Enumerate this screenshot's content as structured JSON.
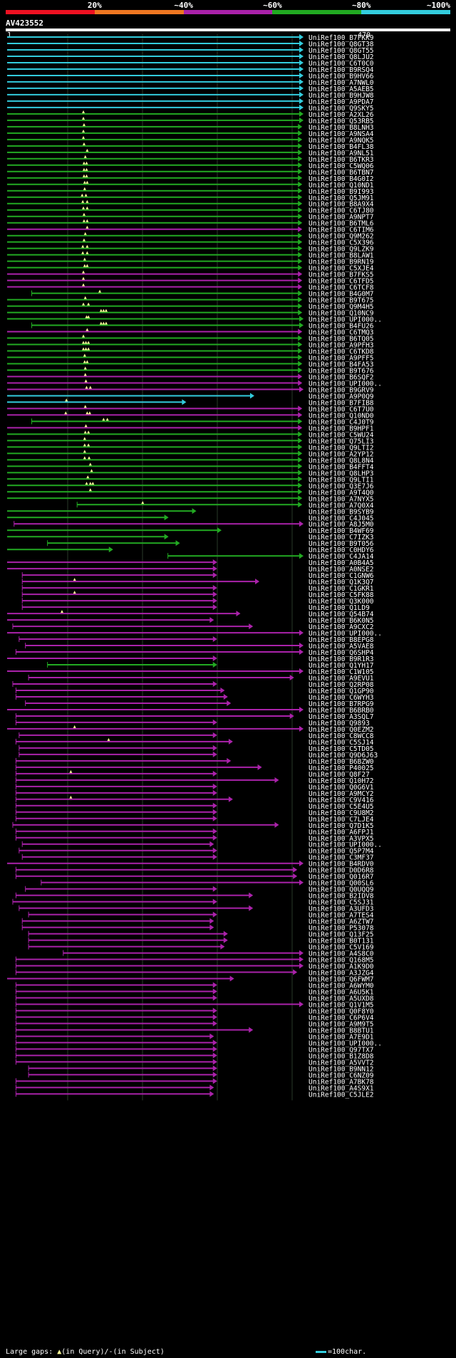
{
  "query": {
    "id": "AV423552",
    "start": "1",
    "end": "470"
  },
  "scale": {
    "labels": [
      "20%",
      "~40%",
      "~60%",
      "~80%",
      "~100%"
    ],
    "segments": [
      {
        "color": "#ee1122"
      },
      {
        "color": "#ee7722"
      },
      {
        "color": "#aa22aa"
      },
      {
        "color": "#22aa22"
      },
      {
        "color": "#33ccdd"
      }
    ]
  },
  "legend": {
    "prefix": "Large gaps: ",
    "query_gap": "(in Query)/",
    "subject_gap": "(in Subject)",
    "scale_label": "=100char."
  },
  "colors": {
    "c": "#33ccdd",
    "g": "#22aa22",
    "m": "#aa22aa",
    "marker": "#ffff99"
  },
  "chart_data": {
    "type": "alignment-overview",
    "query_length": 470,
    "hits": [
      [
        "UniRef100_B7FKK9",
        "c",
        1,
        470,
        []
      ],
      [
        "UniRef100_Q8GT38",
        "c",
        1,
        470,
        []
      ],
      [
        "UniRef100_Q8GT55",
        "c",
        1,
        470,
        []
      ],
      [
        "UniRef100_Q8LJU2",
        "c",
        1,
        470,
        []
      ],
      [
        "UniRef100_C6T0C0",
        "c",
        1,
        470,
        []
      ],
      [
        "UniRef100_B9RSQ4",
        "c",
        1,
        470,
        []
      ],
      [
        "UniRef100_B9HV66",
        "c",
        1,
        470,
        []
      ],
      [
        "UniRef100_A7NWL0",
        "c",
        1,
        470,
        []
      ],
      [
        "UniRef100_A5AEB5",
        "c",
        1,
        470,
        []
      ],
      [
        "UniRef100_B9HJW8",
        "c",
        1,
        470,
        []
      ],
      [
        "UniRef100_A9PDA7",
        "c",
        1,
        470,
        []
      ],
      [
        "UniRef100_Q9SKY5",
        "c",
        1,
        470,
        []
      ],
      [
        "UniRef100_A2XL26",
        "g",
        1,
        470,
        [
          122
        ]
      ],
      [
        "UniRef100_Q53RB5",
        "g",
        1,
        470,
        [
          122
        ]
      ],
      [
        "UniRef100_B8LNH3",
        "g",
        1,
        468,
        [
          123
        ]
      ],
      [
        "UniRef100_A9NSA4",
        "g",
        1,
        468,
        [
          122
        ]
      ],
      [
        "UniRef100_A9NQK5",
        "g",
        1,
        468,
        [
          122
        ]
      ],
      [
        "UniRef100_B4FL38",
        "g",
        1,
        468,
        [
          123
        ]
      ],
      [
        "UniRef100_A9NL51",
        "g",
        1,
        468,
        [
          128
        ]
      ],
      [
        "UniRef100_B6TKR3",
        "g",
        1,
        468,
        [
          125
        ]
      ],
      [
        "UniRef100_C5WQ06",
        "g",
        1,
        468,
        [
          123,
          127
        ]
      ],
      [
        "UniRef100_B6TBN7",
        "g",
        1,
        468,
        [
          123,
          127
        ]
      ],
      [
        "UniRef100_B4G0I2",
        "g",
        1,
        468,
        [
          123,
          127
        ]
      ],
      [
        "UniRef100_Q10ND1",
        "g",
        1,
        468,
        [
          124,
          128
        ]
      ],
      [
        "UniRef100_B9I993",
        "g",
        1,
        468,
        [
          124
        ]
      ],
      [
        "UniRef100_Q5JM91",
        "g",
        1,
        468,
        [
          120,
          126
        ]
      ],
      [
        "UniRef100_B8A9X4",
        "g",
        1,
        468,
        [
          121,
          128
        ]
      ],
      [
        "UniRef100_C6TJ80",
        "g",
        1,
        468,
        [
          122,
          128
        ]
      ],
      [
        "UniRef100_A9NPT7",
        "g",
        1,
        468,
        [
          123
        ]
      ],
      [
        "UniRef100_B6TML6",
        "g",
        1,
        468,
        [
          123,
          128
        ]
      ],
      [
        "UniRef100_C6TIM6",
        "m",
        1,
        468,
        [
          128
        ]
      ],
      [
        "UniRef100_Q9M262",
        "g",
        1,
        468,
        [
          125
        ]
      ],
      [
        "UniRef100_C5X396",
        "g",
        1,
        468,
        [
          123
        ]
      ],
      [
        "UniRef100_Q9LZK9",
        "g",
        1,
        468,
        [
          121,
          128
        ]
      ],
      [
        "UniRef100_B8LAW1",
        "g",
        1,
        468,
        [
          121,
          128
        ]
      ],
      [
        "UniRef100_B9RN19",
        "g",
        1,
        468,
        [
          124
        ]
      ],
      [
        "UniRef100_C5XJE4",
        "g",
        1,
        468,
        [
          124,
          128
        ]
      ],
      [
        "UniRef100_B7FKS5",
        "m",
        1,
        468,
        [
          122
        ]
      ],
      [
        "UniRef100_C6TFD5",
        "m",
        1,
        468,
        [
          122
        ]
      ],
      [
        "UniRef100_C6TCF8",
        "m",
        1,
        468,
        [
          122
        ]
      ],
      [
        "UniRef100_B4G0M7",
        "g",
        40,
        468,
        [
          148
        ]
      ],
      [
        "UniRef100_B9T675",
        "g",
        1,
        468,
        [
          125
        ]
      ],
      [
        "UniRef100_Q9M4H5",
        "g",
        1,
        468,
        [
          122,
          130
        ]
      ],
      [
        "UniRef100_Q10NC9",
        "g",
        1,
        468,
        [
          150,
          154,
          158
        ]
      ],
      [
        "UniRef100_UPI000..",
        "g",
        1,
        470,
        [
          127,
          130
        ]
      ],
      [
        "UniRef100_B4FU26",
        "g",
        40,
        470,
        [
          150,
          154,
          158
        ]
      ],
      [
        "UniRef100_C6TMQ3",
        "m",
        1,
        468,
        [
          128
        ]
      ],
      [
        "UniRef100_B6TQ05",
        "g",
        1,
        468,
        [
          122
        ]
      ],
      [
        "UniRef100_A9PFH3",
        "g",
        1,
        468,
        [
          122,
          126,
          130
        ]
      ],
      [
        "UniRef100_C6TKD8",
        "g",
        1,
        468,
        [
          122,
          126,
          130
        ]
      ],
      [
        "UniRef100_A9PFF5",
        "g",
        1,
        468,
        [
          124
        ]
      ],
      [
        "UniRef100_B4FA53",
        "g",
        1,
        468,
        [
          124,
          128
        ]
      ],
      [
        "UniRef100_B9T676",
        "g",
        1,
        468,
        [
          125
        ]
      ],
      [
        "UniRef100_B6SQF2",
        "m",
        1,
        468,
        [
          125
        ]
      ],
      [
        "UniRef100_UPI000..",
        "m",
        1,
        468,
        [
          126
        ]
      ],
      [
        "UniRef100_B9GRV9",
        "m",
        1,
        470,
        [
          127,
          133
        ]
      ],
      [
        "UniRef100_A9P0Q9",
        "c",
        1,
        392,
        []
      ],
      [
        "UniRef100_B7FIB8",
        "c",
        1,
        284,
        [
          95
        ]
      ],
      [
        "UniRef100_C6T7U0",
        "m",
        1,
        468,
        [
          125
        ]
      ],
      [
        "UniRef100_Q10ND0",
        "m",
        1,
        468,
        [
          94,
          128,
          132
        ]
      ],
      [
        "UniRef100_C4J0T9",
        "g",
        40,
        468,
        [
          154,
          160
        ]
      ],
      [
        "UniRef100_B9HPF1",
        "m",
        1,
        468,
        [
          126
        ]
      ],
      [
        "UniRef100_C5WU24",
        "g",
        1,
        468,
        [
          125,
          130
        ]
      ],
      [
        "UniRef100_Q75LI3",
        "g",
        1,
        468,
        [
          124
        ]
      ],
      [
        "UniRef100_Q9LTI2",
        "g",
        1,
        468,
        [
          124,
          130
        ]
      ],
      [
        "UniRef100_A2YP12",
        "g",
        1,
        468,
        [
          124
        ]
      ],
      [
        "UniRef100_Q8L8N4",
        "g",
        1,
        468,
        [
          124,
          131
        ]
      ],
      [
        "UniRef100_B4FFT4",
        "g",
        1,
        468,
        [
          133
        ]
      ],
      [
        "UniRef100_Q8LHP3",
        "g",
        1,
        468,
        [
          135
        ]
      ],
      [
        "UniRef100_Q9LTI1",
        "g",
        1,
        468,
        [
          129
        ]
      ],
      [
        "UniRef100_Q3E7J6",
        "g",
        1,
        468,
        [
          127,
          133,
          137
        ]
      ],
      [
        "UniRef100_A9T4Q0",
        "g",
        1,
        468,
        [
          133
        ]
      ],
      [
        "UniRef100_A7NYX5",
        "g",
        1,
        468,
        []
      ],
      [
        "UniRef100_A7Q0X4",
        "g",
        112,
        468,
        [
          216
        ]
      ],
      [
        "UniRef100_B9SYB9",
        "g",
        1,
        300,
        []
      ],
      [
        "UniRef100_C4J045",
        "g",
        1,
        256,
        []
      ],
      [
        "UniRef100_A8J5M0",
        "m",
        12,
        470,
        []
      ],
      [
        "UniRef100_B4WF69",
        "g",
        1,
        340,
        []
      ],
      [
        "UniRef100_C7IZK3",
        "g",
        1,
        256,
        []
      ],
      [
        "UniRef100_B9T056",
        "g",
        65,
        274,
        []
      ],
      [
        "UniRef100_C0HDY6",
        "g",
        1,
        168,
        []
      ],
      [
        "UniRef100_C4JA14",
        "g",
        256,
        470,
        []
      ],
      [
        "UniRef100_A0B4A5",
        "m",
        1,
        333,
        []
      ],
      [
        "UniRef100_A0NSE2",
        "m",
        1,
        333,
        []
      ],
      [
        "UniRef100_C1GNW6",
        "m",
        25,
        333,
        []
      ],
      [
        "UniRef100_Q1K3Q7",
        "m",
        25,
        400,
        [
          108
        ]
      ],
      [
        "UniRef100_C1GKR1",
        "m",
        25,
        333,
        []
      ],
      [
        "UniRef100_C5FK88",
        "m",
        25,
        333,
        [
          108
        ]
      ],
      [
        "UniRef100_Q3K000",
        "m",
        25,
        333,
        []
      ],
      [
        "UniRef100_Q1LD9",
        "m",
        25,
        333,
        []
      ],
      [
        "UniRef100_Q54B74",
        "m",
        1,
        370,
        [
          88
        ]
      ],
      [
        "UniRef100_B6K0N5",
        "m",
        1,
        328,
        []
      ],
      [
        "UniRef100_A9CXC2",
        "m",
        10,
        390,
        []
      ],
      [
        "UniRef100_UPI000..",
        "m",
        1,
        470,
        []
      ],
      [
        "UniRef100_B8EPG8",
        "m",
        20,
        333,
        []
      ],
      [
        "UniRef100_A5VAE8",
        "m",
        30,
        470,
        []
      ],
      [
        "UniRef100_Q6SHP4",
        "m",
        15,
        470,
        []
      ],
      [
        "UniRef100_B9R1R3",
        "m",
        1,
        333,
        []
      ],
      [
        "UniRef100_Q1YH17",
        "g",
        65,
        333,
        []
      ],
      [
        "UniRef100_C1W105",
        "m",
        1,
        470,
        []
      ],
      [
        "UniRef100_A9EVU1",
        "m",
        35,
        455,
        []
      ],
      [
        "UniRef100_Q2RP08",
        "m",
        10,
        333,
        []
      ],
      [
        "UniRef100_Q1GP90",
        "m",
        15,
        345,
        []
      ],
      [
        "UniRef100_C6WYH3",
        "m",
        15,
        350,
        []
      ],
      [
        "UniRef100_B7RPG9",
        "m",
        30,
        355,
        []
      ],
      [
        "UniRef100_B6BRB0",
        "m",
        1,
        470,
        []
      ],
      [
        "UniRef100_A3SQL7",
        "m",
        15,
        455,
        []
      ],
      [
        "UniRef100_Q9893",
        "m",
        15,
        333,
        []
      ],
      [
        "UniRef100_Q0EZM2",
        "m",
        1,
        470,
        [
          108
        ]
      ],
      [
        "UniRef100_C8WCC8",
        "m",
        20,
        333,
        []
      ],
      [
        "UniRef100_C5SJ14",
        "m",
        15,
        358,
        [
          162
        ]
      ],
      [
        "UniRef100_C5TD05",
        "m",
        20,
        333,
        []
      ],
      [
        "UniRef100_Q9D6J63",
        "m",
        20,
        333,
        []
      ],
      [
        "UniRef100_B6BZW0",
        "m",
        15,
        355,
        []
      ],
      [
        "UniRef100_P40025",
        "m",
        15,
        404,
        []
      ],
      [
        "UniRef100_Q8F27",
        "m",
        15,
        333,
        [
          102
        ]
      ],
      [
        "UniRef100_Q10H72",
        "m",
        15,
        431,
        []
      ],
      [
        "UniRef100_Q0G6V1",
        "m",
        15,
        333,
        []
      ],
      [
        "UniRef100_A9MCY2",
        "m",
        15,
        333,
        []
      ],
      [
        "UniRef100_C9V416",
        "m",
        15,
        358,
        [
          102
        ]
      ],
      [
        "UniRef100_C5E4U5",
        "m",
        15,
        333,
        []
      ],
      [
        "UniRef100_C9U8M2",
        "m",
        15,
        333,
        []
      ],
      [
        "UniRef100_C7LJE4",
        "m",
        15,
        333,
        []
      ],
      [
        "UniRef100_Q7D1K5",
        "m",
        10,
        431,
        []
      ],
      [
        "UniRef100_A6FPJ1",
        "m",
        15,
        333,
        []
      ],
      [
        "UniRef100_A3VPX5",
        "m",
        15,
        333,
        []
      ],
      [
        "UniRef100_UPI000..",
        "m",
        25,
        328,
        []
      ],
      [
        "UniRef100_Q5P7M4",
        "m",
        20,
        333,
        []
      ],
      [
        "UniRef100_C3MF37",
        "m",
        25,
        333,
        []
      ],
      [
        "UniRef100_B4RDV0",
        "m",
        1,
        470,
        []
      ],
      [
        "UniRef100_D0D6R8",
        "m",
        15,
        460,
        []
      ],
      [
        "UniRef100_Q016R7",
        "m",
        15,
        460,
        []
      ],
      [
        "UniRef100_Q00SL6",
        "m",
        55,
        470,
        []
      ],
      [
        "UniRef100_Q0UQQ9",
        "m",
        30,
        333,
        []
      ],
      [
        "UniRef100_B2IDV8",
        "m",
        15,
        390,
        []
      ],
      [
        "UniRef100_C5SJ31",
        "m",
        10,
        333,
        []
      ],
      [
        "UniRef100_A3UFD3",
        "m",
        20,
        390,
        []
      ],
      [
        "UniRef100_A7TES4",
        "m",
        35,
        333,
        []
      ],
      [
        "UniRef100_A6ZTW7",
        "m",
        25,
        328,
        []
      ],
      [
        "UniRef100_P53078",
        "m",
        25,
        328,
        []
      ],
      [
        "UniRef100_Q13F25",
        "m",
        35,
        350,
        []
      ],
      [
        "UniRef100_B0T131",
        "m",
        35,
        350,
        []
      ],
      [
        "UniRef100_C5V169",
        "m",
        35,
        345,
        []
      ],
      [
        "UniRef100_A4S8C0",
        "m",
        90,
        470,
        []
      ],
      [
        "UniRef100_Q168M5",
        "m",
        15,
        470,
        []
      ],
      [
        "UniRef100_A1K9D0",
        "m",
        15,
        470,
        []
      ],
      [
        "UniRef100_A3JZG4",
        "m",
        15,
        460,
        []
      ],
      [
        "UniRef100_Q6FWM7",
        "m",
        1,
        360,
        []
      ],
      [
        "UniRef100_A6WYM0",
        "m",
        15,
        333,
        []
      ],
      [
        "UniRef100_A6U5K1",
        "m",
        15,
        333,
        []
      ],
      [
        "UniRef100_A5UXD8",
        "m",
        15,
        333,
        []
      ],
      [
        "UniRef100_Q1V1M5",
        "m",
        15,
        470,
        []
      ],
      [
        "UniRef100_Q0F8Y0",
        "m",
        15,
        333,
        []
      ],
      [
        "UniRef100_C6P6V4",
        "m",
        15,
        333,
        []
      ],
      [
        "UniRef100_A9M9T5",
        "m",
        15,
        333,
        []
      ],
      [
        "UniRef100_B8BTU1",
        "m",
        15,
        390,
        []
      ],
      [
        "UniRef100_A7E9D1",
        "m",
        15,
        328,
        []
      ],
      [
        "UniRef100_UPI000..",
        "m",
        15,
        333,
        []
      ],
      [
        "UniRef100_Q97TX7",
        "m",
        15,
        333,
        []
      ],
      [
        "UniRef100_B1Z8D8",
        "m",
        15,
        333,
        []
      ],
      [
        "UniRef100_A5VVT2",
        "m",
        15,
        333,
        []
      ],
      [
        "UniRef100_B9NN12",
        "m",
        35,
        333,
        []
      ],
      [
        "UniRef100_C6NZ09",
        "m",
        35,
        333,
        []
      ],
      [
        "UniRef100_A7BK78",
        "m",
        15,
        333,
        []
      ],
      [
        "UniRef100_A4S9X1",
        "m",
        15,
        328,
        []
      ],
      [
        "UniRef100_C5JLE2",
        "m",
        15,
        328,
        []
      ]
    ]
  }
}
